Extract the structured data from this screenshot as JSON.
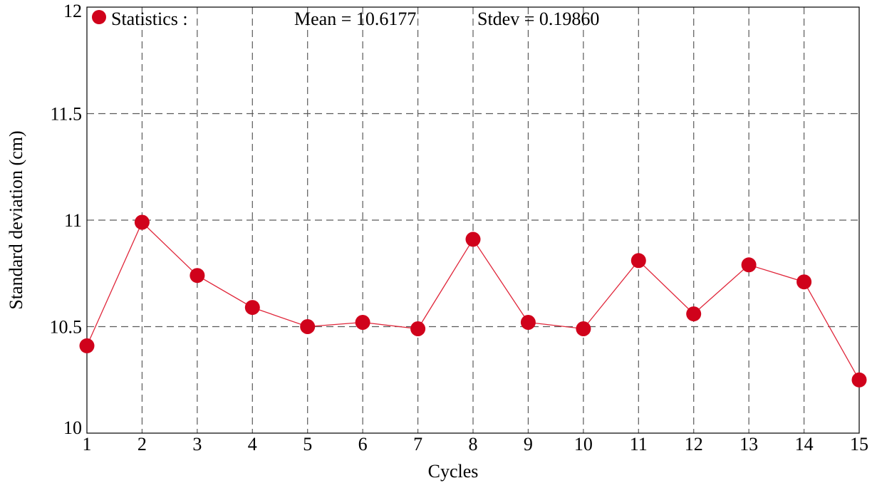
{
  "chart_data": {
    "type": "line",
    "xlabel": "Cycles",
    "ylabel": "Standard deviation (cm)",
    "xlim": [
      1,
      15
    ],
    "ylim": [
      10,
      12
    ],
    "x_ticks": [
      1,
      2,
      3,
      4,
      5,
      6,
      7,
      8,
      9,
      10,
      11,
      12,
      13,
      14,
      15
    ],
    "y_ticks": [
      {
        "value": 10,
        "label": "10"
      },
      {
        "value": 10.5,
        "label": "10.5"
      },
      {
        "value": 11,
        "label": "11"
      },
      {
        "value": 11.5,
        "label": "11.5"
      },
      {
        "value": 12,
        "label": "12"
      }
    ],
    "grid": true,
    "legend_placement": "top-left",
    "legend": {
      "label": "Statistics :",
      "mean_text": "Mean = 10.6177",
      "stdev_text": "Stdev = 0.19860"
    },
    "series": [
      {
        "x": [
          1,
          2,
          3,
          4,
          5,
          6,
          7,
          8,
          9,
          10,
          11,
          12,
          13,
          14,
          15
        ],
        "values": [
          10.41,
          10.99,
          10.74,
          10.59,
          10.5,
          10.52,
          10.49,
          10.91,
          10.52,
          10.49,
          10.81,
          10.56,
          10.79,
          10.71,
          10.25
        ],
        "marker_color": "#d0021b",
        "line_color": "#e0263a"
      }
    ]
  }
}
